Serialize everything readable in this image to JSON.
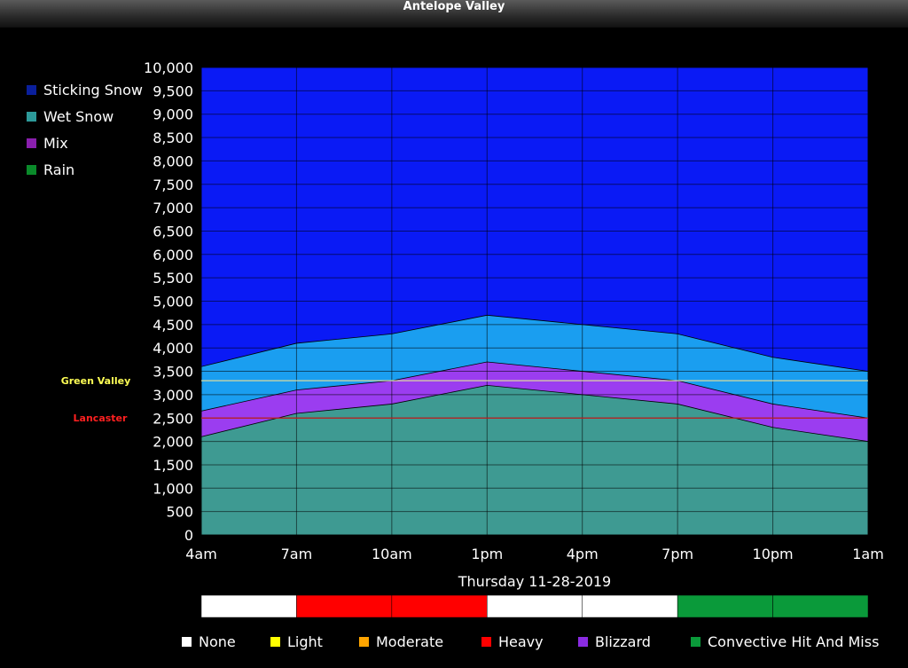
{
  "window": {
    "title": "Antelope Valley"
  },
  "legend": [
    {
      "label": "Sticking Snow",
      "color": "#0a1f9c"
    },
    {
      "label": "Wet Snow",
      "color": "#2d9a9a"
    },
    {
      "label": "Mix",
      "color": "#8a1fae"
    },
    {
      "label": "Rain",
      "color": "#0a8a2a"
    }
  ],
  "reference_lines": [
    {
      "label": "Green Valley",
      "value": 3300,
      "color": "#ffff55",
      "line_color": "#d8d8a0"
    },
    {
      "label": "Lancaster",
      "value": 2500,
      "color": "#ff2020",
      "line_color": "#c02020"
    }
  ],
  "date_label": "Thursday 11-28-2019",
  "intensity_bar": [
    {
      "color": "#ffffff"
    },
    {
      "color": "#ff0000"
    },
    {
      "color": "#ff0000"
    },
    {
      "color": "#ffffff"
    },
    {
      "color": "#ffffff"
    },
    {
      "color": "#0a9a3a"
    },
    {
      "color": "#0a9a3a"
    }
  ],
  "intensity_legend": [
    {
      "label": "None",
      "color": "#ffffff"
    },
    {
      "label": "Light",
      "color": "#ffff00"
    },
    {
      "label": "Moderate",
      "color": "#ffa500"
    },
    {
      "label": "Heavy",
      "color": "#ff0000"
    },
    {
      "label": "Blizzard",
      "color": "#8a2be2"
    },
    {
      "label": "Convective Hit And Miss",
      "color": "#0a9a3a"
    }
  ],
  "chart_data": {
    "type": "area",
    "categories": [
      "4am",
      "7am",
      "10am",
      "1pm",
      "4pm",
      "7pm",
      "10pm",
      "1am"
    ],
    "ylim": [
      0,
      10000
    ],
    "yticks": [
      "0",
      "500",
      "1,000",
      "1,500",
      "2,000",
      "2,500",
      "3,000",
      "3,500",
      "4,000",
      "4,500",
      "5,000",
      "5,500",
      "6,000",
      "6,500",
      "7,000",
      "7,500",
      "8,000",
      "8,500",
      "9,000",
      "9,500",
      "10,000"
    ],
    "grid": true,
    "colors": {
      "sticking_snow": "#0a1af5",
      "wet_snow": "#1a9ef0",
      "mix": "#9b3df0",
      "rain": "#3e9a92"
    },
    "series": [
      {
        "name": "Rain",
        "values": [
          2100,
          2600,
          2800,
          3200,
          3000,
          2800,
          2300,
          2000
        ]
      },
      {
        "name": "Mix",
        "values": [
          2650,
          3100,
          3300,
          3700,
          3500,
          3300,
          2800,
          2500
        ]
      },
      {
        "name": "Wet Snow",
        "values": [
          3600,
          4100,
          4300,
          4700,
          4500,
          4300,
          3800,
          3500
        ]
      },
      {
        "name": "Sticking Snow",
        "values": [
          10000,
          10000,
          10000,
          10000,
          10000,
          10000,
          10000,
          10000
        ]
      }
    ]
  }
}
